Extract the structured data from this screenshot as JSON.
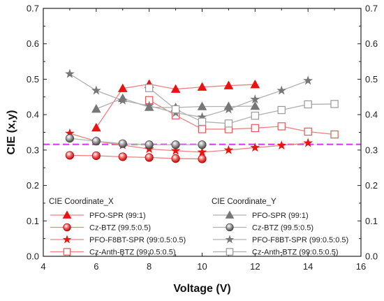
{
  "chart_data": {
    "type": "line",
    "xlabel": "Voltage (V)",
    "ylabel": "CIE (x,y)",
    "xlim": [
      4,
      16
    ],
    "ylim": [
      0.0,
      0.7
    ],
    "x_ticks": [
      "4",
      "6",
      "8",
      "10",
      "12",
      "14",
      "16"
    ],
    "y_ticks": [
      "0.0",
      "0.1",
      "0.2",
      "0.3",
      "0.4",
      "0.5",
      "0.6",
      "0.7"
    ],
    "x_tick_values": [
      4,
      6,
      8,
      10,
      12,
      14,
      16
    ],
    "y_tick_values": [
      0.0,
      0.1,
      0.2,
      0.3,
      0.4,
      0.5,
      0.6,
      0.7
    ],
    "grid": false,
    "reference_line": {
      "y": 0.316,
      "color": "#e040fb",
      "style": "dashed"
    },
    "legend_groups": [
      {
        "title": "CIE Coordinate_X",
        "placement": "bottom-left"
      },
      {
        "title": "CIE Coordinate_Y",
        "placement": "bottom-right"
      }
    ],
    "series": [
      {
        "name": "PFO-SPR (99:1)",
        "group": 0,
        "marker": "triangle",
        "fill": "solid",
        "color": "#ee1111",
        "x": [
          6,
          7,
          8,
          9,
          10,
          11,
          12
        ],
        "y": [
          0.363,
          0.474,
          0.486,
          0.472,
          0.478,
          0.482,
          0.485
        ]
      },
      {
        "name": "Cz-BTZ (99.5:0.5)",
        "group": 0,
        "marker": "sphere",
        "fill": "solid",
        "color": "#ee1111",
        "x": [
          5,
          6,
          7,
          8,
          9,
          10
        ],
        "y": [
          0.285,
          0.284,
          0.281,
          0.279,
          0.276,
          0.275
        ]
      },
      {
        "name": "PFO-F8BT-SPR (99:0.5:0.5)",
        "group": 0,
        "marker": "star",
        "fill": "solid",
        "color": "#ee1111",
        "x": [
          5,
          6,
          7,
          8,
          9,
          10,
          11,
          12,
          13,
          14
        ],
        "y": [
          0.347,
          0.325,
          0.314,
          0.303,
          0.298,
          0.294,
          0.3,
          0.307,
          0.313,
          0.32
        ]
      },
      {
        "name": "Cz-Anth-BTZ (99:0.5:0.5)",
        "group": 0,
        "marker": "square",
        "fill": "open",
        "color": "#ee5555",
        "x": [
          8,
          9,
          10,
          11,
          12,
          13,
          14,
          15
        ],
        "y": [
          0.441,
          0.398,
          0.359,
          0.359,
          0.362,
          0.367,
          0.352,
          0.344
        ]
      },
      {
        "name": "PFO-SPR (99:1)",
        "group": 1,
        "marker": "triangle",
        "fill": "solid",
        "color": "#777777",
        "x": [
          6,
          7,
          8,
          9,
          10,
          11,
          12
        ],
        "y": [
          0.416,
          0.446,
          0.421,
          0.42,
          0.423,
          0.423,
          0.424
        ]
      },
      {
        "name": "Cz-BTZ (99.5:0.5)",
        "group": 1,
        "marker": "sphere",
        "fill": "solid",
        "color": "#777777",
        "x": [
          5,
          6,
          7,
          8,
          9,
          10
        ],
        "y": [
          0.333,
          0.325,
          0.318,
          0.315,
          0.315,
          0.315
        ]
      },
      {
        "name": "PFO-F8BT-SPR (99:0.5:0.5)",
        "group": 1,
        "marker": "star",
        "fill": "solid",
        "color": "#777777",
        "x": [
          5,
          6,
          7,
          8,
          9,
          10,
          11,
          12,
          13,
          14
        ],
        "y": [
          0.515,
          0.468,
          0.44,
          0.425,
          0.405,
          0.393,
          0.415,
          0.443,
          0.468,
          0.496
        ]
      },
      {
        "name": "Cz-Anth-BTZ (99:0.5:0.5)",
        "group": 1,
        "marker": "square",
        "fill": "open",
        "color": "#999999",
        "x": [
          8,
          9,
          10,
          11,
          12,
          13,
          14,
          15
        ],
        "y": [
          0.475,
          0.415,
          0.38,
          0.375,
          0.397,
          0.413,
          0.429,
          0.43
        ]
      }
    ]
  }
}
